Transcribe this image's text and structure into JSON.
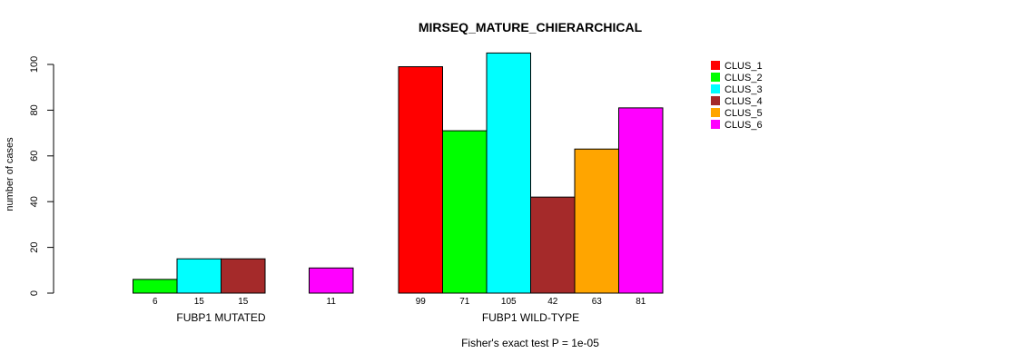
{
  "chart_data": {
    "type": "bar",
    "title": "MIRSEQ_MATURE_CHIERARCHICAL",
    "ylabel": "number of cases",
    "xlabel": "",
    "footer": "Fisher's exact test P = 1e-05",
    "ylim": [
      0,
      105
    ],
    "yticks": [
      0,
      20,
      40,
      60,
      80,
      100
    ],
    "grid": false,
    "legend_position": "top-right",
    "groups": [
      "FUBP1 MUTATED",
      "FUBP1 WILD-TYPE"
    ],
    "series": [
      {
        "name": "CLUS_1",
        "color": "#FF0000",
        "values": [
          0,
          99
        ]
      },
      {
        "name": "CLUS_2",
        "color": "#00FF00",
        "values": [
          6,
          71
        ]
      },
      {
        "name": "CLUS_3",
        "color": "#00FFFF",
        "values": [
          15,
          105
        ]
      },
      {
        "name": "CLUS_4",
        "color": "#A52A2A",
        "values": [
          15,
          42
        ]
      },
      {
        "name": "CLUS_5",
        "color": "#FFA500",
        "values": [
          0,
          63
        ]
      },
      {
        "name": "CLUS_6",
        "color": "#FF00FF",
        "values": [
          11,
          81
        ]
      }
    ]
  }
}
